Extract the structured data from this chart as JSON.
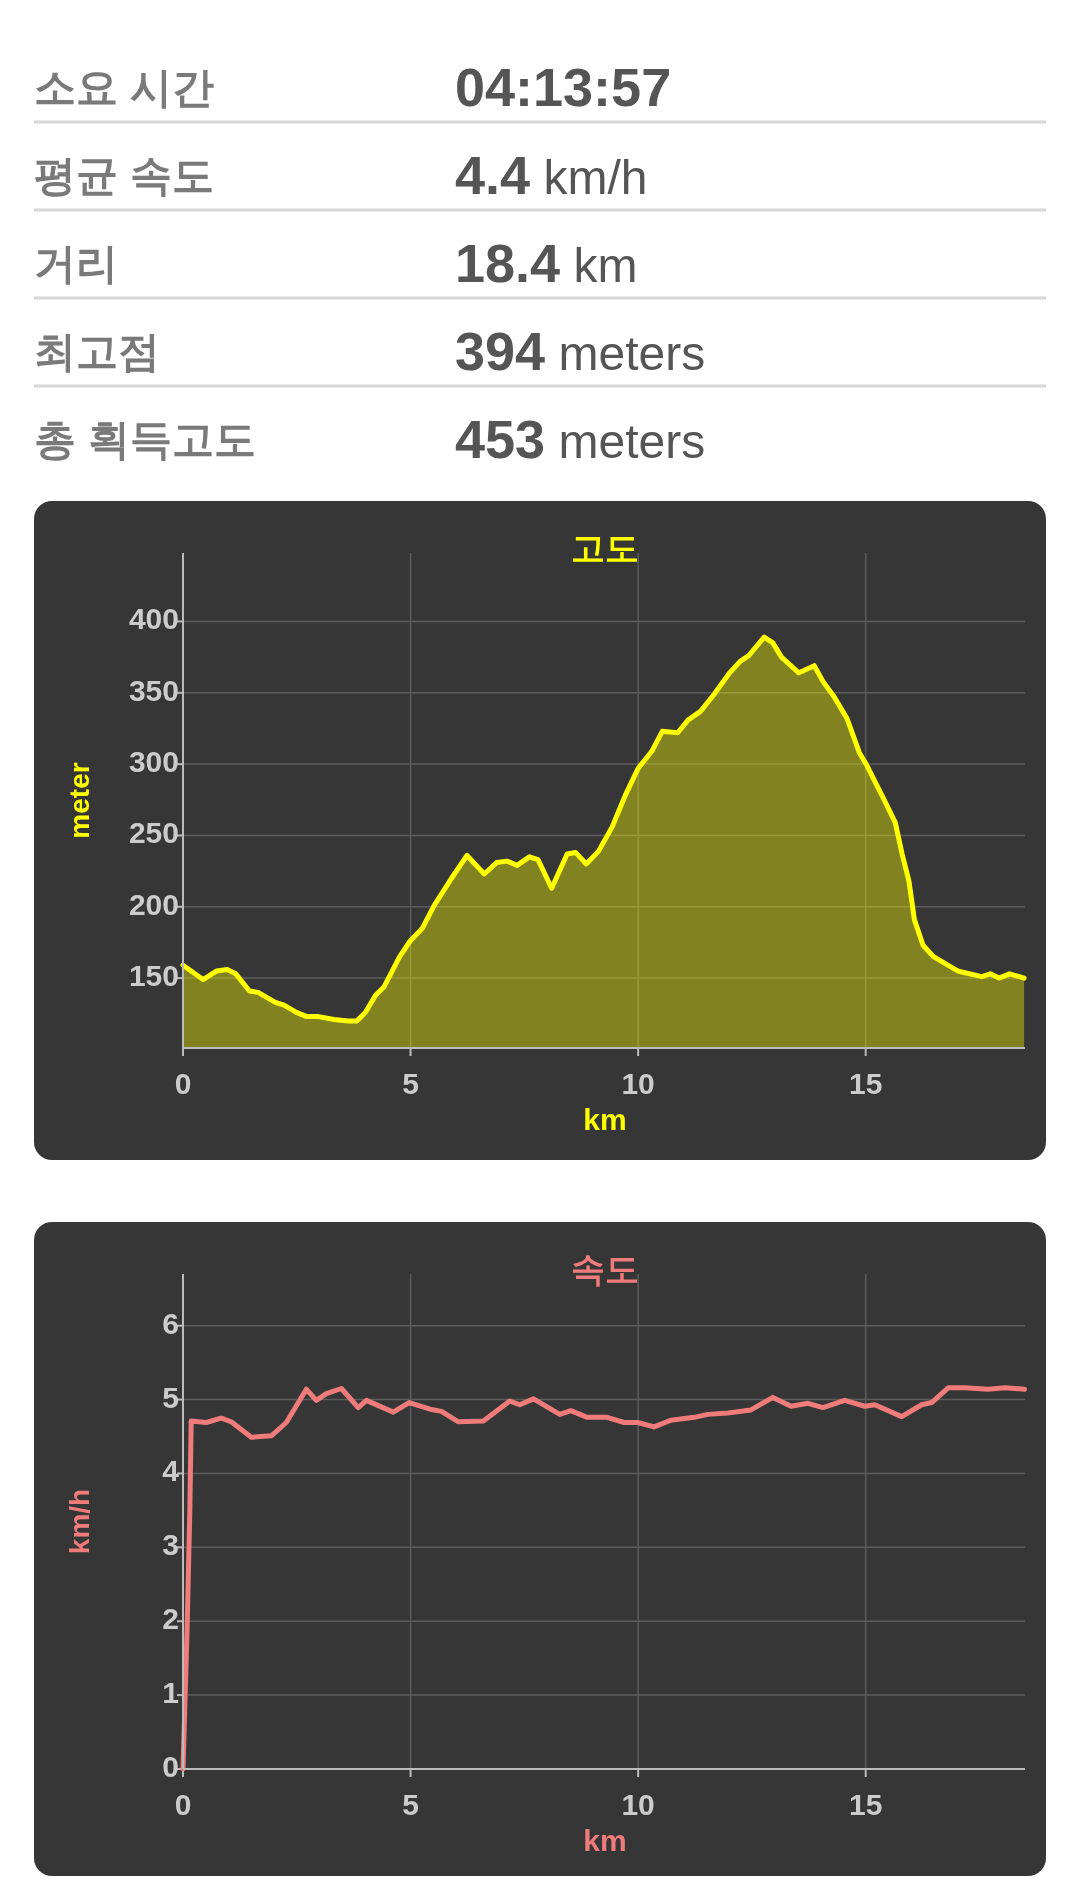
{
  "chart_data": [
    {
      "type": "other",
      "annotations": [
        "소요 시간",
        "04:13:57",
        "평균 속도",
        "4.4 km/h",
        "거리",
        "18.4 km",
        "최고점",
        "394 meters",
        "총 획득고도",
        "453 meters"
      ]
    },
    {
      "type": "area",
      "title": "고도",
      "xlabel": "km",
      "ylabel": "meter",
      "color": "#ffff00",
      "grid": true,
      "xlim": [
        0,
        18.5
      ],
      "ylim": [
        101,
        448
      ],
      "xticks": [
        0,
        5,
        10,
        15
      ],
      "yticks": [
        150,
        200,
        250,
        300,
        350,
        400
      ],
      "x": [
        0,
        0.44,
        0.74,
        0.97,
        1.16,
        1.46,
        1.65,
        2.03,
        2.22,
        2.49,
        2.72,
        2.98,
        3.32,
        3.63,
        3.82,
        4.01,
        4.23,
        4.42,
        4.76,
        4.99,
        5.26,
        5.52,
        5.9,
        6.24,
        6.62,
        6.89,
        7.12,
        7.34,
        7.61,
        7.8,
        8.1,
        8.44,
        8.63,
        8.86,
        9.13,
        9.43,
        9.73,
        10.0,
        10.3,
        10.53,
        10.87,
        11.1,
        11.37,
        11.67,
        12.01,
        12.24,
        12.43,
        12.77,
        12.96,
        13.15,
        13.53,
        13.87,
        14.06,
        14.29,
        14.59,
        14.86,
        15.01,
        15.39,
        15.65,
        15.8,
        15.95,
        16.07,
        16.26,
        16.49,
        17.02,
        17.55,
        17.74,
        17.93,
        18.16,
        18.48
      ],
      "values": [
        159,
        149,
        155,
        156,
        153,
        141,
        140,
        133,
        131,
        126,
        123,
        123,
        121,
        120,
        120,
        126,
        138,
        144,
        165,
        176,
        185,
        201,
        220,
        236,
        223,
        231,
        232,
        229,
        235,
        233,
        213,
        237,
        238,
        230,
        239,
        256,
        279,
        297,
        309,
        323,
        322,
        331,
        337,
        349,
        364,
        372,
        376,
        389,
        385,
        375,
        364,
        369,
        358,
        348,
        332,
        308,
        300,
        276,
        259,
        237,
        218,
        191,
        173,
        165,
        155,
        151,
        153,
        150,
        153,
        150
      ]
    },
    {
      "type": "line",
      "title": "속도",
      "xlabel": "km",
      "ylabel": "km/h",
      "color": "#ef7b7b",
      "grid": true,
      "xlim": [
        0,
        18.5
      ],
      "ylim": [
        0,
        6.7
      ],
      "xticks": [
        0,
        5,
        10,
        15
      ],
      "yticks": [
        0,
        1,
        2,
        3,
        4,
        5,
        6
      ],
      "x": [
        0,
        0.09,
        0.15,
        0.18,
        0.51,
        0.84,
        1.06,
        1.5,
        1.94,
        2.27,
        2.71,
        2.93,
        3.15,
        3.48,
        3.85,
        4.03,
        4.62,
        4.97,
        5.43,
        5.68,
        6.05,
        6.6,
        7.18,
        7.4,
        7.7,
        8.28,
        8.52,
        8.88,
        9.32,
        9.69,
        9.99,
        10.35,
        10.72,
        11.23,
        11.53,
        11.97,
        12.48,
        12.96,
        13.36,
        13.73,
        14.06,
        14.54,
        14.98,
        15.2,
        15.79,
        16.23,
        16.45,
        16.81,
        17.18,
        17.69,
        18.06,
        18.49
      ],
      "values": [
        0,
        1.9,
        3.5,
        4.71,
        4.69,
        4.75,
        4.7,
        4.49,
        4.51,
        4.69,
        5.14,
        4.99,
        5.08,
        5.15,
        4.89,
        4.99,
        4.83,
        4.96,
        4.87,
        4.84,
        4.7,
        4.71,
        4.98,
        4.93,
        5.01,
        4.8,
        4.85,
        4.76,
        4.76,
        4.69,
        4.69,
        4.63,
        4.72,
        4.76,
        4.8,
        4.82,
        4.86,
        5.03,
        4.91,
        4.95,
        4.89,
        4.99,
        4.91,
        4.93,
        4.77,
        4.93,
        4.96,
        5.16,
        5.16,
        5.14,
        5.16,
        5.14
      ]
    }
  ]
}
